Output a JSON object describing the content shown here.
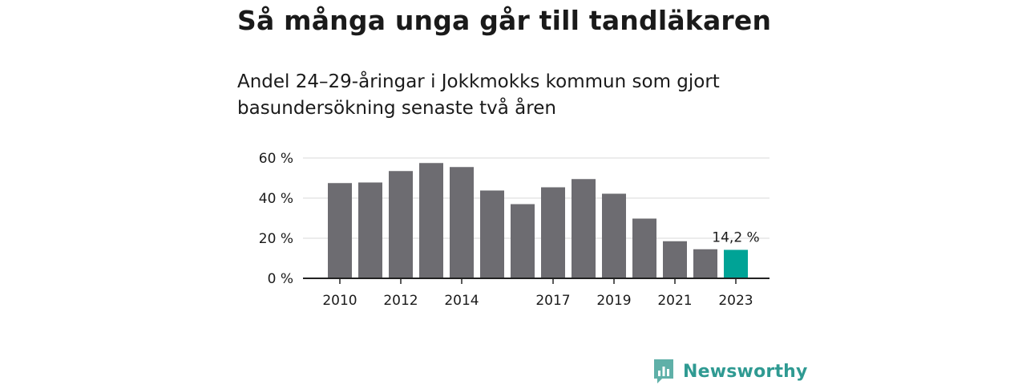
{
  "title": "Så många unga går till tandläkaren",
  "subtitle": "Andel 24–29-åringar i Jokkmokks kommun som gjort basundersökning senaste två åren",
  "brand": "Newsworthy",
  "colors": {
    "bar": "#6d6c71",
    "highlight": "#00a396",
    "grid": "#d9d9d9",
    "axis": "#222222",
    "brand": "#2f9a92"
  },
  "chart_data": {
    "type": "bar",
    "categories": [
      "2010",
      "2011",
      "2012",
      "2013",
      "2014",
      "2015",
      "2016",
      "2017",
      "2018",
      "2019",
      "2020",
      "2021",
      "2022",
      "2023"
    ],
    "values": [
      47.5,
      47.8,
      53.5,
      57.5,
      55.5,
      43.8,
      37.0,
      45.4,
      49.5,
      42.2,
      29.8,
      18.5,
      14.5,
      14.2
    ],
    "x_tick_labels": [
      "2010",
      "2012",
      "2014",
      "2017",
      "2019",
      "2021",
      "2023"
    ],
    "y_ticks": [
      0,
      20,
      40,
      60
    ],
    "y_tick_labels": [
      "0 %",
      "20 %",
      "40 %",
      "60 %"
    ],
    "ylim": [
      0,
      60
    ],
    "highlight_index": 13,
    "annotation": "14,2 %",
    "grid": true
  }
}
